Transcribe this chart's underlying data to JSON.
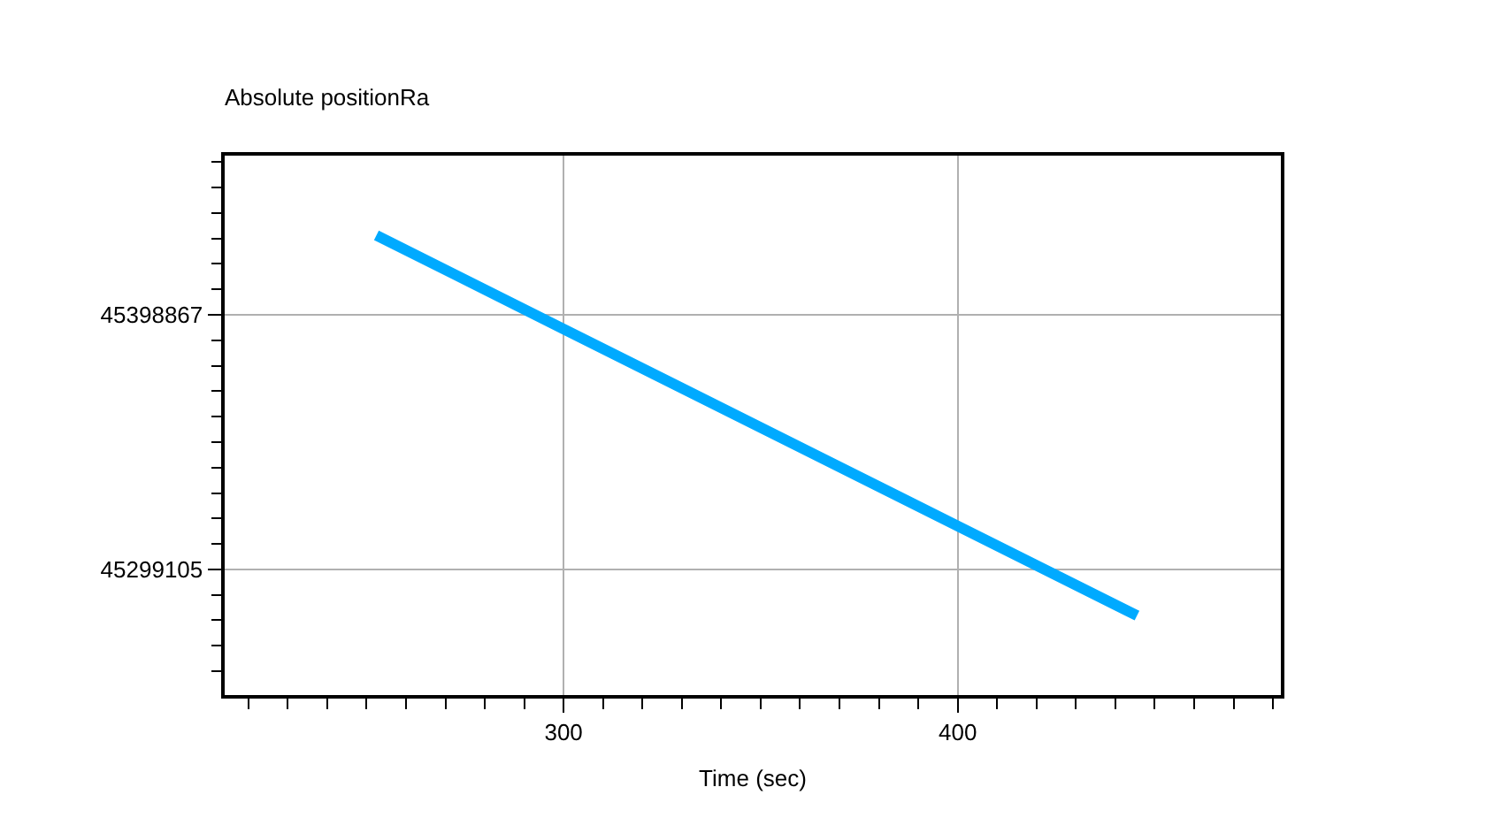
{
  "chart_data": {
    "type": "line",
    "title": "Absolute positionRa",
    "xlabel": "Time (sec)",
    "x": [
      252.5,
      300,
      400,
      445.5
    ],
    "series": [
      {
        "color": "#00aaff",
        "values": [
          45430000,
          45393300,
          45316100,
          45281000
        ]
      }
    ],
    "xlim": [
      214,
      482
    ],
    "xticks": [
      {
        "value": 220,
        "label": null
      },
      {
        "value": 230,
        "label": null
      },
      {
        "value": 240,
        "label": null
      },
      {
        "value": 250,
        "label": null
      },
      {
        "value": 260,
        "label": null
      },
      {
        "value": 270,
        "label": null
      },
      {
        "value": 280,
        "label": null
      },
      {
        "value": 290,
        "label": null
      },
      300,
      {
        "value": 310,
        "label": null
      },
      {
        "value": 320,
        "label": null
      },
      {
        "value": 330,
        "label": null
      },
      {
        "value": 340,
        "label": null
      },
      {
        "value": 350,
        "label": null
      },
      {
        "value": 360,
        "label": null
      },
      {
        "value": 370,
        "label": null
      },
      {
        "value": 380,
        "label": null
      },
      {
        "value": 390,
        "label": null
      },
      400,
      {
        "value": 410,
        "label": null
      },
      {
        "value": 420,
        "label": null
      },
      {
        "value": 430,
        "label": null
      },
      {
        "value": 440,
        "label": null
      },
      {
        "value": 450,
        "label": null
      },
      {
        "value": 460,
        "label": null
      },
      {
        "value": 470,
        "label": null
      },
      {
        "value": 480,
        "label": null
      }
    ],
    "ylim": [
      45249900,
      45461200
    ],
    "yticks": [
      {
        "value": 45259200,
        "label": null
      },
      {
        "value": 45269200,
        "label": null
      },
      {
        "value": 45279200,
        "label": null
      },
      {
        "value": 45289100,
        "label": null
      },
      45299105,
      {
        "value": 45309100,
        "label": null
      },
      {
        "value": 45319100,
        "label": null
      },
      {
        "value": 45329000,
        "label": null
      },
      {
        "value": 45339000,
        "label": null
      },
      {
        "value": 45349000,
        "label": null
      },
      {
        "value": 45359000,
        "label": null
      },
      {
        "value": 45369000,
        "label": null
      },
      {
        "value": 45378900,
        "label": null
      },
      {
        "value": 45388900,
        "label": null
      },
      45398867,
      {
        "value": 45408800,
        "label": null
      },
      {
        "value": 45418800,
        "label": null
      },
      {
        "value": 45428800,
        "label": null
      },
      {
        "value": 45438800,
        "label": null
      },
      {
        "value": 45448800,
        "label": null
      },
      {
        "value": 45458700,
        "label": null
      }
    ],
    "grid": true,
    "legend": false,
    "marker": "none",
    "line_style": "solid"
  }
}
